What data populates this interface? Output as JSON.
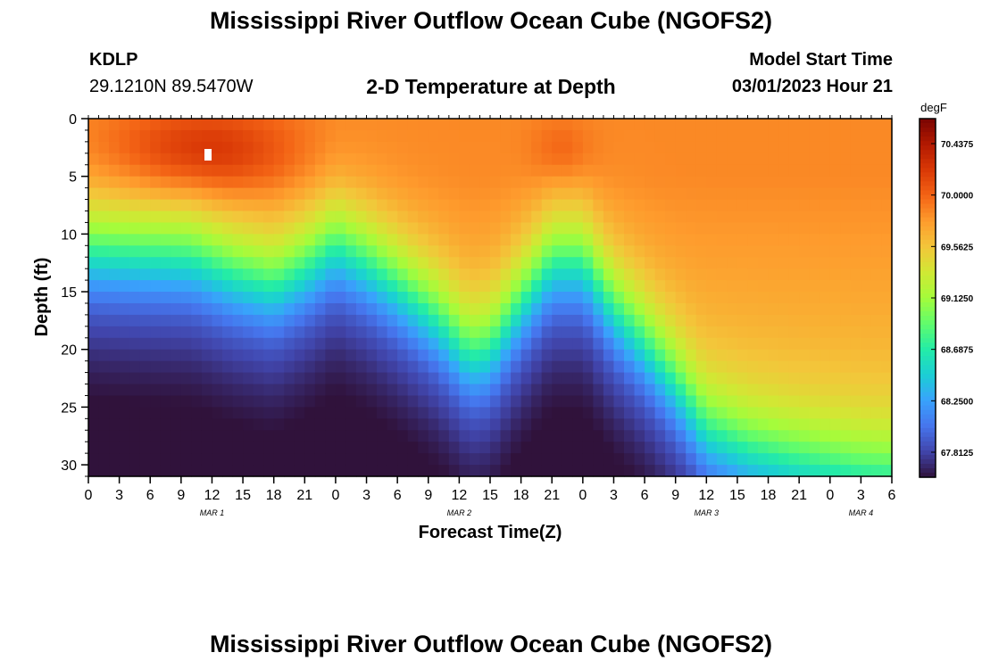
{
  "page": {
    "title": "Mississippi River Outflow Ocean Cube (NGOFS2)",
    "station_id": "KDLP",
    "station_coords": "29.1210N  89.5470W",
    "subtitle": "2-D Temperature at Depth",
    "model_label": "Model Start Time",
    "model_time": "03/01/2023 Hour 21",
    "footer_title": "Mississippi River Outflow Ocean Cube (NGOFS2)"
  },
  "chart_data": {
    "type": "heatmap",
    "title": "2-D Temperature at Depth",
    "xlabel": "Forecast Time(Z)",
    "ylabel": "Depth (ft)",
    "x_hours_range": [
      0,
      78
    ],
    "ylim": [
      0,
      31
    ],
    "y_inverted": true,
    "x_ticks": [
      {
        "h": 0,
        "label": "0"
      },
      {
        "h": 3,
        "label": "3"
      },
      {
        "h": 6,
        "label": "6"
      },
      {
        "h": 9,
        "label": "9"
      },
      {
        "h": 12,
        "label": "12"
      },
      {
        "h": 15,
        "label": "15"
      },
      {
        "h": 18,
        "label": "18"
      },
      {
        "h": 21,
        "label": "21"
      },
      {
        "h": 24,
        "label": "0"
      },
      {
        "h": 27,
        "label": "3"
      },
      {
        "h": 30,
        "label": "6"
      },
      {
        "h": 33,
        "label": "9"
      },
      {
        "h": 36,
        "label": "12"
      },
      {
        "h": 39,
        "label": "15"
      },
      {
        "h": 42,
        "label": "18"
      },
      {
        "h": 45,
        "label": "21"
      },
      {
        "h": 48,
        "label": "0"
      },
      {
        "h": 51,
        "label": "3"
      },
      {
        "h": 54,
        "label": "6"
      },
      {
        "h": 57,
        "label": "9"
      },
      {
        "h": 60,
        "label": "12"
      },
      {
        "h": 63,
        "label": "15"
      },
      {
        "h": 66,
        "label": "18"
      },
      {
        "h": 69,
        "label": "21"
      },
      {
        "h": 72,
        "label": "0"
      },
      {
        "h": 75,
        "label": "3"
      },
      {
        "h": 78,
        "label": "6"
      }
    ],
    "date_labels": [
      {
        "h": 12,
        "label": "MAR 1"
      },
      {
        "h": 36,
        "label": "MAR 2"
      },
      {
        "h": 60,
        "label": "MAR 3"
      },
      {
        "h": 75,
        "label": "MAR 4"
      }
    ],
    "y_ticks": [
      0,
      5,
      10,
      15,
      20,
      25,
      30
    ],
    "colorbar": {
      "unit": "degF",
      "min": 67.6,
      "max": 70.65,
      "ticks": [
        "70.4375",
        "70.0000",
        "69.5625",
        "69.1250",
        "68.6875",
        "68.2500",
        "67.8125"
      ],
      "colors": [
        "#30123b",
        "#4145ab",
        "#4675ed",
        "#39a2fc",
        "#1bcfd4",
        "#24eca6",
        "#61fc6c",
        "#a4fc3b",
        "#d1e834",
        "#f3c63a",
        "#fe9b2d",
        "#f36315",
        "#d93806",
        "#b11901",
        "#7a0402"
      ]
    },
    "thermocline_hours": [
      0,
      6,
      10,
      14,
      18,
      21,
      24,
      27,
      30,
      34,
      37,
      39,
      42,
      45,
      48,
      51,
      54,
      57,
      60,
      64,
      68,
      72,
      75,
      78
    ],
    "thermocline_depth_ft": [
      11.5,
      11.8,
      12,
      13.5,
      14.5,
      13,
      11,
      12.5,
      14.5,
      17.5,
      20.5,
      20,
      16,
      12.5,
      12.5,
      16.5,
      19.5,
      23,
      27,
      28.8,
      29.8,
      30.5,
      31,
      31.2
    ]
  }
}
